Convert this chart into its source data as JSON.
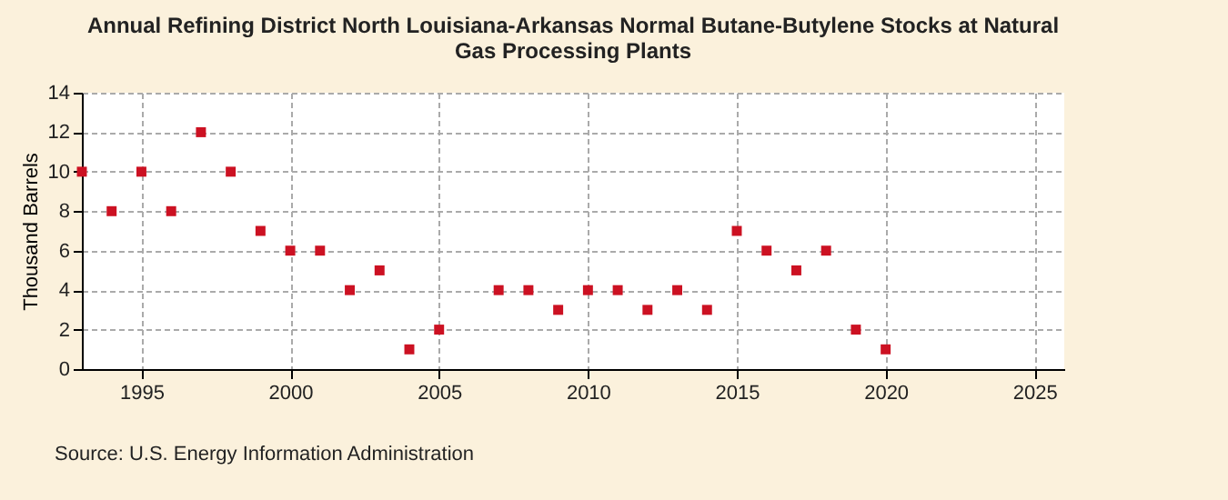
{
  "chart_data": {
    "type": "scatter",
    "title": "Annual Refining District North Louisiana-Arkansas Normal Butane-Butylene Stocks at Natural Gas Processing Plants",
    "ylabel": "Thousand Barrels",
    "annotations": [
      "Source: U.S. Energy Information Administration"
    ],
    "x": [
      1993,
      1994,
      1995,
      1996,
      1997,
      1998,
      1999,
      2000,
      2001,
      2002,
      2003,
      2004,
      2005,
      2007,
      2008,
      2009,
      2010,
      2011,
      2012,
      2013,
      2014,
      2015,
      2016,
      2017,
      2018,
      2019,
      2020
    ],
    "series": [
      {
        "color": "#cc1122",
        "values": [
          10,
          8,
          10,
          8,
          12,
          10,
          7,
          6,
          6,
          4,
          5,
          1,
          2,
          4,
          4,
          3,
          4,
          4,
          3,
          4,
          3,
          7,
          6,
          5,
          6,
          2,
          1
        ]
      }
    ],
    "xlim": [
      1993,
      2026
    ],
    "xticks": [
      1995,
      2000,
      2005,
      2010,
      2015,
      2020,
      2025
    ],
    "ylim": [
      0,
      14
    ],
    "yticks": [
      0,
      2,
      4,
      6,
      8,
      10,
      12,
      14
    ],
    "grid": true,
    "marker": "square"
  }
}
